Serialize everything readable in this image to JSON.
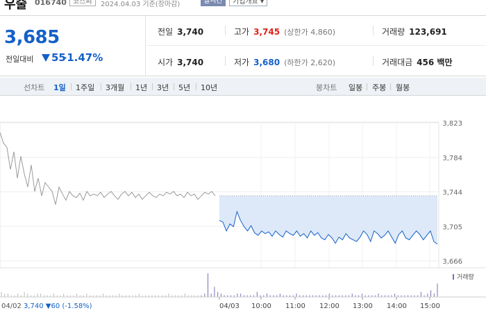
{
  "header": {
    "stock_name": "우술",
    "stock_code": "016740",
    "market_badge": "코스피",
    "date_text": "2024.04.03  기준(장마감)",
    "realtime_badge": "실시간",
    "company_button": "기업개요 ▾"
  },
  "price": {
    "current": "3,685",
    "change_label": "전일대비",
    "change": "55",
    "change_pct": "-1.47%"
  },
  "stats": {
    "prev_close_label": "전일",
    "prev_close": "3,740",
    "high_label": "고가",
    "high": "3,745",
    "upper_limit": "(상한가 4,860)",
    "volume_label": "거래량",
    "volume": "123,691",
    "open_label": "시가",
    "open": "3,740",
    "low_label": "저가",
    "low": "3,680",
    "lower_limit": "(하한가 2,620)",
    "amount_label": "거래대금",
    "amount": "456 백만"
  },
  "period_tabs": {
    "label": "선차트",
    "items": [
      "1일",
      "1주일",
      "3개월",
      "1년",
      "3년",
      "5년",
      "10년"
    ],
    "active": "1일"
  },
  "candle_tabs": {
    "label": "봉차트",
    "items": [
      "일봉",
      "주봉",
      "월봉"
    ]
  },
  "colors": {
    "accent_blue": "#1560c8",
    "up_red": "#e0211a",
    "prev_day_line": "#9a9a9a",
    "area_fill": "#dde8f8",
    "volume_bar": "#7b6fb3"
  },
  "chart_data": {
    "type": "line",
    "y_ticks": [
      "3,823",
      "3,784",
      "3,744",
      "3,705",
      "3,666"
    ],
    "ylim": [
      3666,
      3823
    ],
    "reference_line": 3740,
    "volume_label": "거래량",
    "x_ticks": [
      "04/03",
      "10:00",
      "11:00",
      "12:00",
      "13:00",
      "14:00",
      "15:00"
    ],
    "prev_day_label": "04/02",
    "prev_day_summary_close": "3,740",
    "prev_day_summary_change": "▼60",
    "prev_day_summary_pct": "(-1.58%)",
    "series": [
      {
        "values": [
          3812,
          3800,
          3795,
          3770,
          3790,
          3760,
          3785,
          3765,
          3750,
          3775,
          3745,
          3760,
          3740,
          3755,
          3750,
          3745,
          3730,
          3750,
          3742,
          3735,
          3745,
          3740,
          3738,
          3743,
          3735,
          3745,
          3740,
          3742,
          3740,
          3744,
          3738,
          3742,
          3745,
          3740,
          3736,
          3742,
          3745,
          3740,
          3744,
          3738,
          3742,
          3736,
          3740,
          3744,
          3740,
          3738,
          3742,
          3740,
          3744,
          3742,
          3745,
          3740,
          3742,
          3738,
          3744,
          3740,
          3742,
          3736,
          3740,
          3744,
          3742,
          3745,
          3740
        ]
      },
      {
        "values": [
          3712,
          3710,
          3700,
          3708,
          3705,
          3722,
          3712,
          3705,
          3700,
          3706,
          3698,
          3695,
          3700,
          3697,
          3699,
          3694,
          3700,
          3696,
          3693,
          3700,
          3697,
          3695,
          3700,
          3694,
          3697,
          3692,
          3700,
          3695,
          3698,
          3692,
          3690,
          3696,
          3692,
          3686,
          3693,
          3690,
          3697,
          3692,
          3690,
          3688,
          3693,
          3700,
          3696,
          3688,
          3700,
          3697,
          3692,
          3695,
          3700,
          3693,
          3686,
          3696,
          3700,
          3692,
          3690,
          3695,
          3700,
          3696,
          3690,
          3695,
          3700,
          3688,
          3685
        ]
      }
    ],
    "volume_values": [
      3,
      2,
      2,
      1,
      1,
      2,
      1,
      3,
      2,
      1,
      1,
      2,
      2,
      1,
      1,
      1,
      2,
      1,
      1,
      2,
      1,
      1,
      1,
      2,
      1,
      1,
      2,
      1,
      1,
      1,
      1,
      2,
      1,
      1,
      1,
      1,
      2,
      1,
      1,
      1,
      1,
      1,
      2,
      1,
      1,
      1,
      1,
      1,
      1,
      1,
      1,
      2,
      1,
      1,
      1,
      1,
      2,
      1,
      1,
      1,
      1,
      1,
      2,
      14,
      2,
      6,
      3,
      2,
      1,
      1,
      1,
      1,
      2,
      2,
      1,
      1,
      1,
      1,
      3,
      1,
      1,
      2,
      1,
      1,
      1,
      2,
      1,
      1,
      1,
      1,
      2,
      1,
      1,
      1,
      1,
      1,
      1,
      1,
      1,
      1,
      2,
      1,
      1,
      1,
      1,
      1,
      1,
      2,
      1,
      1,
      2,
      1,
      1,
      1,
      1,
      2,
      1,
      1,
      1,
      1,
      2,
      1,
      1,
      1,
      1,
      1,
      1,
      1,
      3,
      1,
      2,
      4,
      2,
      8
    ]
  }
}
